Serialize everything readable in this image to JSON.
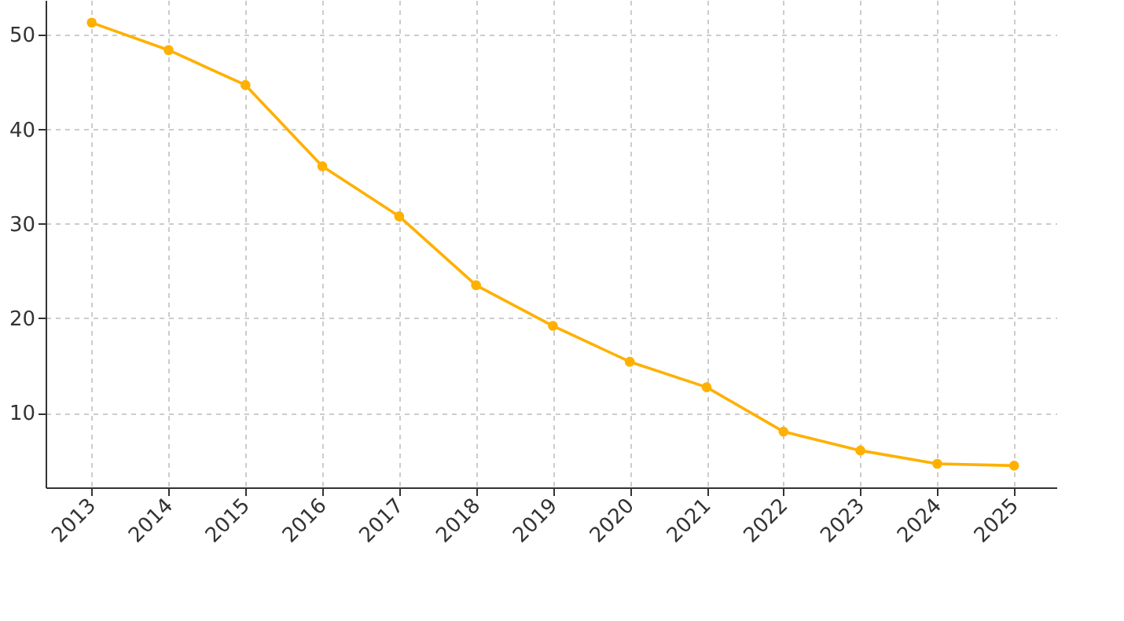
{
  "chart_data": {
    "type": "line",
    "categories": [
      "2013",
      "2014",
      "2015",
      "2016",
      "2017",
      "2018",
      "2019",
      "2020",
      "2021",
      "2022",
      "2023",
      "2024",
      "2025"
    ],
    "series": [
      {
        "color": "#ffb000",
        "values": [
          51.3,
          48.4,
          44.7,
          36.1,
          30.8,
          23.5,
          19.2,
          15.4,
          12.7,
          8.0,
          6.0,
          4.6,
          4.4
        ]
      }
    ],
    "ylim": [
      2.1,
      53.7
    ],
    "yticks": [
      10,
      20,
      30,
      40,
      50
    ],
    "grid": true,
    "marker": "circle",
    "line_style": "solid"
  }
}
